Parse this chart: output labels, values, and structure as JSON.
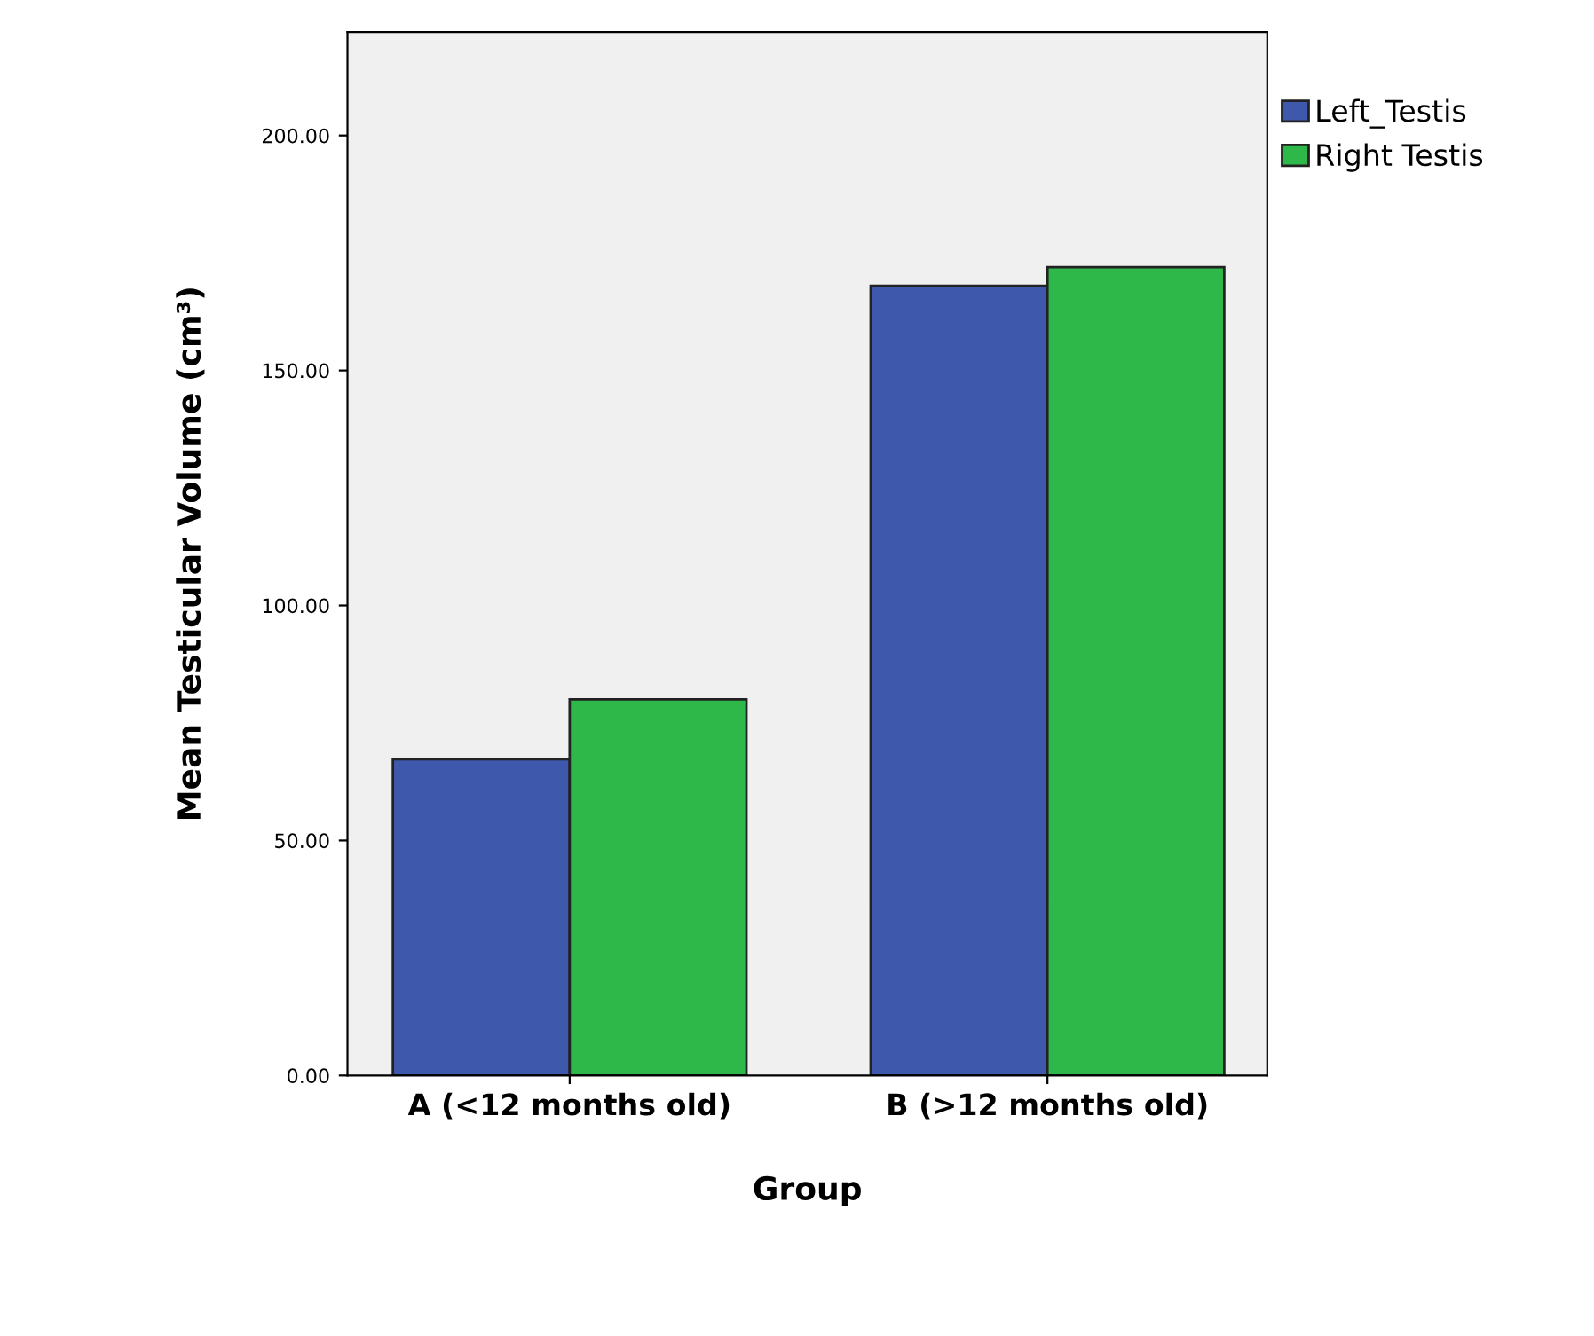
{
  "chart_data": {
    "type": "bar",
    "xlabel": "Group",
    "ylabel": "Mean Testicular Volume (cm³)",
    "categories": [
      "A (<12 months old)",
      "B (>12 months old)"
    ],
    "series": [
      {
        "name": "Left_Testis",
        "color": "#3e58ac",
        "values": [
          67.3,
          168
        ]
      },
      {
        "name": "Right Testis",
        "color": "#2fb84a",
        "values": [
          80,
          172
        ]
      }
    ],
    "ylim": [
      0,
      222
    ],
    "yticks": [
      {
        "value": 0,
        "label": "0.00"
      },
      {
        "value": 50,
        "label": "50.00"
      },
      {
        "value": 100,
        "label": "100.00"
      },
      {
        "value": 150,
        "label": "150.00"
      },
      {
        "value": 200,
        "label": "200.00"
      }
    ],
    "grid": false,
    "legend": "right"
  }
}
